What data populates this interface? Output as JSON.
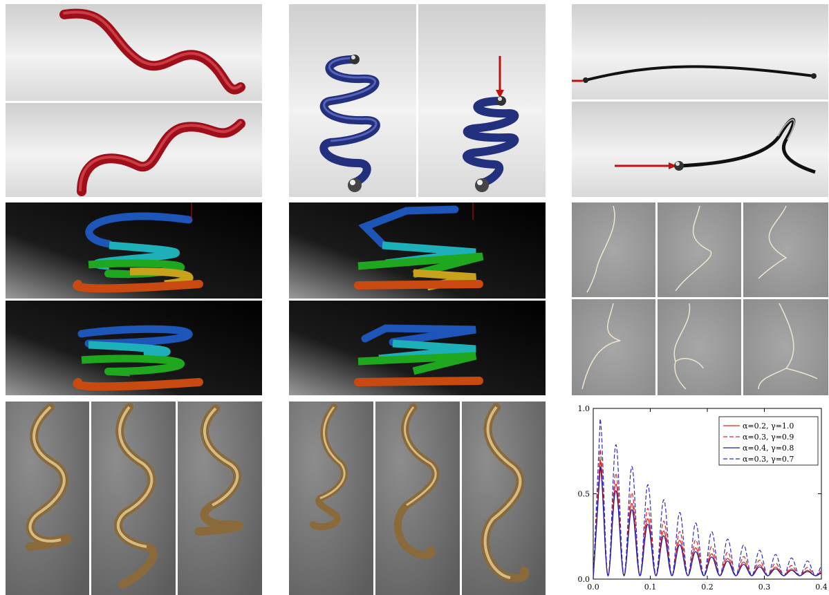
{
  "chart_data": {
    "type": "line",
    "xlim": [
      0.0,
      0.4
    ],
    "ylim": [
      0.0,
      1.0
    ],
    "x_ticks": [
      "0.0",
      "0.1",
      "0.2",
      "0.3",
      "0.4"
    ],
    "y_ticks": [
      "0.0",
      "0.5",
      "1.0"
    ],
    "legend_position": "top-right",
    "series": [
      {
        "name": "α=0.2, γ=1.0",
        "color": "#e02020",
        "dash": "solid",
        "peak": 0.68,
        "decay": 8.5
      },
      {
        "name": "α=0.3, γ=0.9",
        "color": "#e02020",
        "dash": "dashed",
        "peak": 0.74,
        "decay": 7.5
      },
      {
        "name": "α=0.4, γ=0.8",
        "color": "#1a1aa0",
        "dash": "solid",
        "peak": 0.64,
        "decay": 9.0
      },
      {
        "name": "α=0.3, γ=0.7",
        "color": "#2a2ad0",
        "dash": "dashed",
        "peak": 0.92,
        "decay": 6.5
      }
    ]
  }
}
